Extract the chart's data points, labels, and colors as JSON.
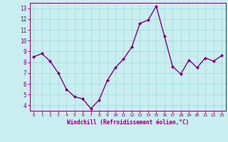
{
  "x": [
    0,
    1,
    2,
    3,
    4,
    5,
    6,
    7,
    8,
    9,
    10,
    11,
    12,
    13,
    14,
    15,
    16,
    17,
    18,
    19,
    20,
    21,
    22,
    23
  ],
  "y": [
    8.5,
    8.8,
    8.1,
    7.0,
    5.5,
    4.8,
    4.6,
    3.7,
    4.5,
    6.3,
    7.5,
    8.3,
    9.4,
    11.6,
    11.9,
    13.2,
    10.4,
    7.6,
    6.9,
    8.2,
    7.5,
    8.4,
    8.1,
    8.6
  ],
  "line_color": "#800080",
  "marker": "D",
  "marker_size": 2,
  "bg_color": "#c8eef0",
  "grid_color": "#a0d8dc",
  "ylim": [
    3.5,
    13.5
  ],
  "yticks": [
    4,
    5,
    6,
    7,
    8,
    9,
    10,
    11,
    12,
    13
  ],
  "xlim": [
    -0.5,
    23.5
  ],
  "xticks": [
    0,
    1,
    2,
    3,
    4,
    5,
    6,
    7,
    8,
    9,
    10,
    11,
    12,
    13,
    14,
    15,
    16,
    17,
    18,
    19,
    20,
    21,
    22,
    23
  ],
  "xlabel": "Windchill (Refroidissement éolien,°C)",
  "xlabel_color": "#800080",
  "tick_color": "#800080",
  "axis_color": "#800080",
  "line_width": 1.0
}
